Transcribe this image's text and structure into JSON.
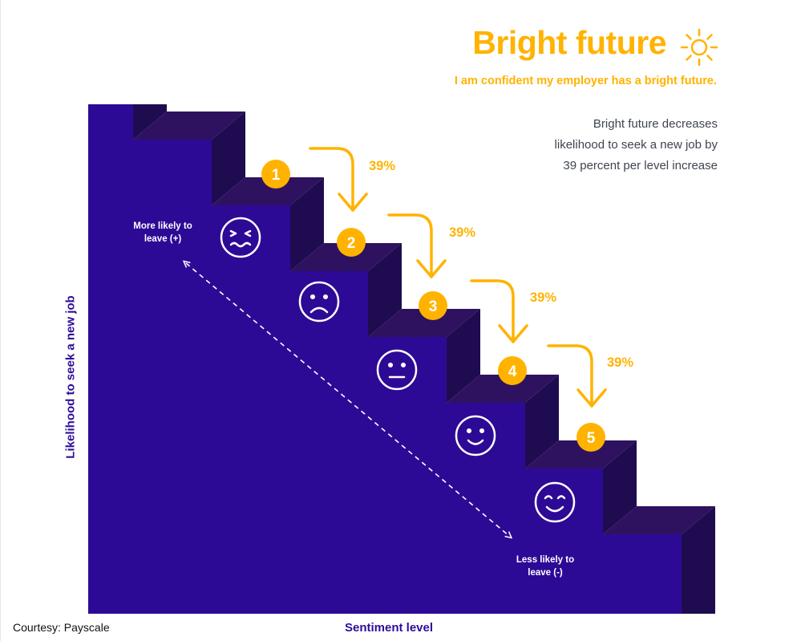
{
  "title": "Bright future",
  "subtitle": "I am confident my employer has a bright future.",
  "description": [
    "Bright future decreases",
    "likelihood to seek a new job by",
    "39 percent per level increase"
  ],
  "axis": {
    "y_label": "Likelihood to seek a new job",
    "x_label": "Sentiment level"
  },
  "annotations": {
    "more_likely": [
      "More likely to",
      "leave (+)"
    ],
    "less_likely": [
      "Less likely to",
      "leave (-)"
    ]
  },
  "levels": [
    {
      "number": "1",
      "face": "distressed-face-icon"
    },
    {
      "number": "2",
      "face": "sad-face-icon"
    },
    {
      "number": "3",
      "face": "neutral-face-icon"
    },
    {
      "number": "4",
      "face": "smiling-face-icon"
    },
    {
      "number": "5",
      "face": "happy-face-icon"
    }
  ],
  "decreases": [
    "39%",
    "39%",
    "39%",
    "39%"
  ],
  "courtesy": "Courtesy: Payscale",
  "colors": {
    "accent": "#ffb300",
    "stair_front": "#2d0a96",
    "stair_top": "#2e1260",
    "stair_riser": "#1f0c50",
    "axis_text": "#2e0d9a"
  }
}
